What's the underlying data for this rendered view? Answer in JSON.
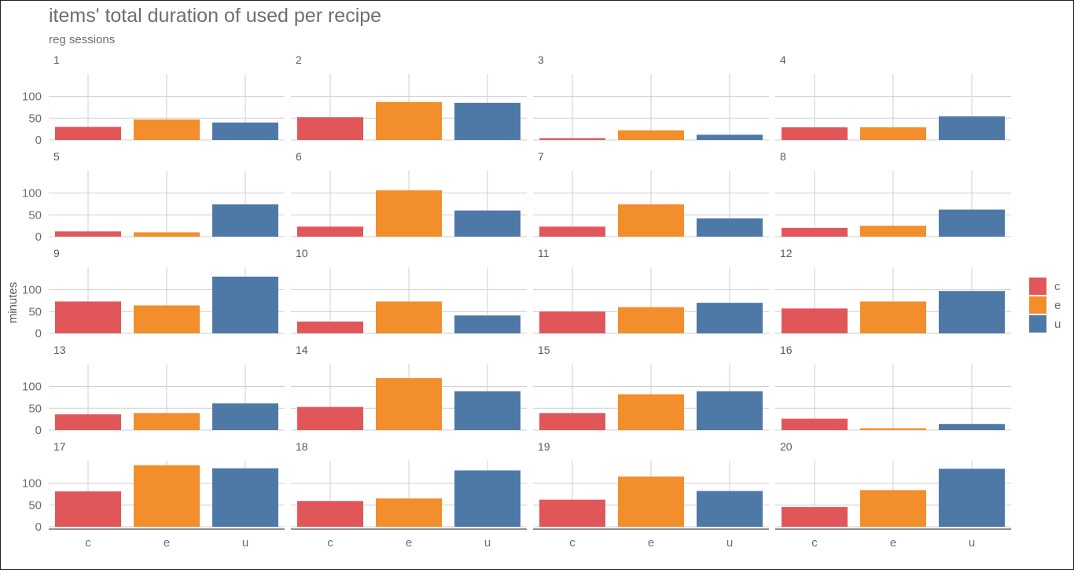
{
  "chart_data": {
    "type": "bar",
    "title": "items' total duration of used per recipe",
    "subtitle": "reg sessions",
    "xlabel": "",
    "ylabel": "minutes",
    "categories": [
      "c",
      "e",
      "u"
    ],
    "colors": {
      "c": "#e15759",
      "e": "#f28e2b",
      "u": "#4e79a7"
    },
    "y_ticks": [
      0,
      50,
      100
    ],
    "ylim": [
      0,
      148
    ],
    "grid": true,
    "legend": {
      "placement": "right",
      "entries": [
        "c",
        "e",
        "u"
      ]
    },
    "facets": [
      {
        "label": "1",
        "values": [
          30,
          47,
          40
        ]
      },
      {
        "label": "2",
        "values": [
          52,
          87,
          85
        ]
      },
      {
        "label": "3",
        "values": [
          4,
          22,
          12
        ]
      },
      {
        "label": "4",
        "values": [
          29,
          29,
          54
        ]
      },
      {
        "label": "5",
        "values": [
          12,
          10,
          74
        ]
      },
      {
        "label": "6",
        "values": [
          23,
          106,
          60
        ]
      },
      {
        "label": "7",
        "values": [
          23,
          74,
          42
        ]
      },
      {
        "label": "8",
        "values": [
          20,
          25,
          62
        ]
      },
      {
        "label": "9",
        "values": [
          73,
          64,
          130
        ]
      },
      {
        "label": "10",
        "values": [
          27,
          73,
          41
        ]
      },
      {
        "label": "11",
        "values": [
          50,
          60,
          70
        ]
      },
      {
        "label": "12",
        "values": [
          57,
          73,
          97
        ]
      },
      {
        "label": "13",
        "values": [
          36,
          39,
          61
        ]
      },
      {
        "label": "14",
        "values": [
          53,
          119,
          89
        ]
      },
      {
        "label": "15",
        "values": [
          39,
          82,
          89
        ]
      },
      {
        "label": "16",
        "values": [
          26,
          4,
          14
        ]
      },
      {
        "label": "17",
        "values": [
          81,
          141,
          134
        ]
      },
      {
        "label": "18",
        "values": [
          59,
          65,
          129
        ]
      },
      {
        "label": "19",
        "values": [
          62,
          115,
          82
        ]
      },
      {
        "label": "20",
        "values": [
          45,
          84,
          133
        ]
      }
    ]
  }
}
